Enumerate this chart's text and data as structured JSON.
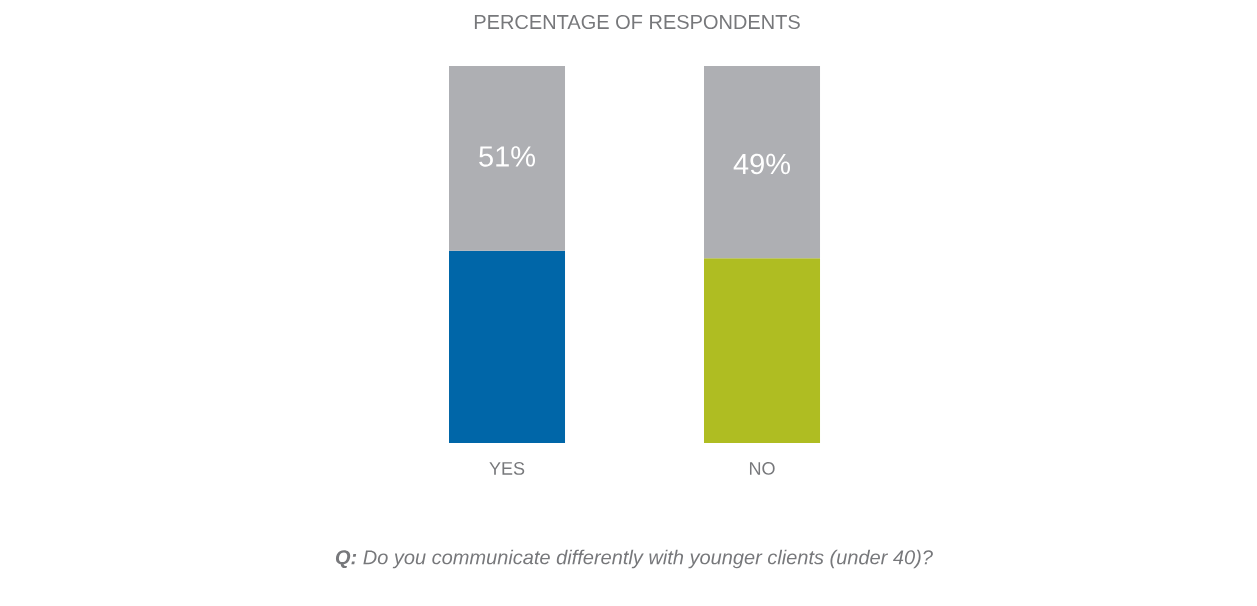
{
  "chart_data": {
    "type": "bar",
    "stacked": true,
    "title": "PERCENTAGE OF RESPONDENTS",
    "categories": [
      "YES",
      "NO"
    ],
    "ylim": [
      0,
      100
    ],
    "tick_labels": "x",
    "series": [
      {
        "colors": [
          "#0066a8",
          "#afbd22"
        ],
        "values": [
          51,
          49
        ],
        "value_labels": [
          "51%",
          "49%"
        ]
      },
      {
        "color": "#aeafb3",
        "values": [
          49,
          51
        ]
      }
    ],
    "annotations": [
      "**Q:** Do you communicate differently with younger clients (under 40)?"
    ]
  }
}
